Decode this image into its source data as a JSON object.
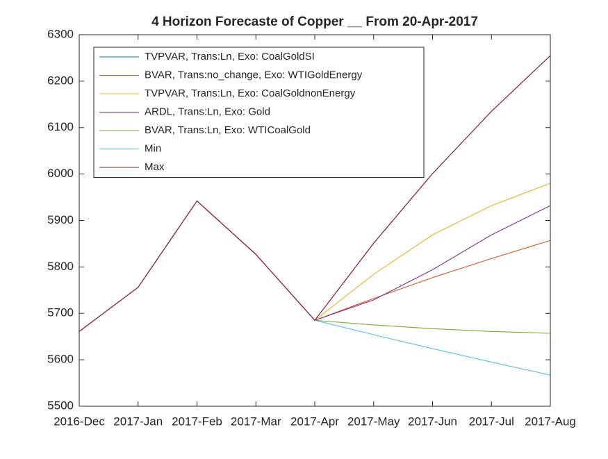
{
  "chart_data": {
    "type": "line",
    "title": "4 Horizon Forecaste of Copper __ From 20-Apr-2017",
    "categories": [
      "2016-Dec",
      "2017-Jan",
      "2017-Feb",
      "2017-Mar",
      "2017-Apr",
      "2017-May",
      "2017-Jun",
      "2017-Jul",
      "2017-Aug"
    ],
    "series": [
      {
        "name": "TVPVAR, Trans:Ln, Exo: CoalGoldSI",
        "color": "#0072bd",
        "values": [
          5661,
          5756,
          5942,
          5827,
          5685,
          5851,
          6001,
          6135,
          6255
        ]
      },
      {
        "name": "BVAR, Trans:no_change, Exo: WTIGoldEnergy",
        "color": "#d95319",
        "values": [
          5661,
          5756,
          5942,
          5827,
          5685,
          5732,
          5777,
          5818,
          5857
        ]
      },
      {
        "name": "TVPVAR, Trans:Ln, Exo: CoalGoldnonEnergy",
        "color": "#edb120",
        "values": [
          5661,
          5756,
          5942,
          5827,
          5685,
          5784,
          5869,
          5932,
          5980
        ]
      },
      {
        "name": "ARDL, Trans:Ln, Exo: Gold",
        "color": "#7e2f8e",
        "values": [
          5661,
          5756,
          5942,
          5827,
          5685,
          5729,
          5794,
          5869,
          5932
        ]
      },
      {
        "name": "BVAR, Trans:Ln, Exo: WTICoalGold",
        "color": "#77ac30",
        "values": [
          5661,
          5756,
          5942,
          5827,
          5685,
          5675,
          5667,
          5661,
          5657
        ]
      },
      {
        "name": "Min",
        "color": "#4dbeee",
        "values": [
          5661,
          5756,
          5942,
          5827,
          5685,
          5654,
          5624,
          5595,
          5567
        ]
      },
      {
        "name": "Max",
        "color": "#a2142f",
        "values": [
          5661,
          5756,
          5942,
          5827,
          5685,
          5851,
          6001,
          6135,
          6255
        ]
      }
    ],
    "ylim": [
      5500,
      6300
    ],
    "yticks": [
      5500,
      5600,
      5700,
      5800,
      5900,
      6000,
      6100,
      6200,
      6300
    ],
    "legend": "upper left",
    "grid": false
  }
}
